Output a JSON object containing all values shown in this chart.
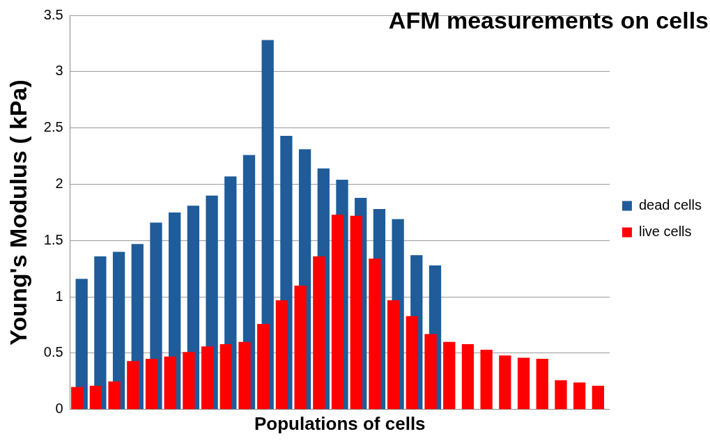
{
  "chart_data": {
    "type": "bar",
    "title": "AFM measurements on cells",
    "xlabel": "Populations of cells",
    "ylabel": "Young's Modulus ( kPa)",
    "categories": [
      null,
      null,
      null,
      null,
      null,
      null,
      null,
      null,
      null,
      null,
      null,
      null,
      null,
      null,
      null,
      null,
      null,
      null,
      null,
      null,
      null,
      null,
      null,
      null,
      null,
      null,
      null,
      null,
      null
    ],
    "series": [
      {
        "name": "dead cells",
        "color": "#1f5c99",
        "values": [
          1.16,
          1.36,
          1.4,
          1.47,
          1.66,
          1.75,
          1.81,
          1.9,
          2.07,
          2.26,
          3.28,
          2.43,
          2.31,
          2.14,
          2.04,
          1.88,
          1.78,
          1.69,
          1.37,
          1.28,
          null,
          null,
          null,
          null,
          null,
          null,
          null,
          null,
          null
        ]
      },
      {
        "name": "live cells",
        "color": "#ff0000",
        "values": [
          0.2,
          0.21,
          0.25,
          0.43,
          0.45,
          0.47,
          0.51,
          0.56,
          0.58,
          0.6,
          0.76,
          0.97,
          1.1,
          1.36,
          1.73,
          1.72,
          1.34,
          0.97,
          0.83,
          0.67,
          0.6,
          0.58,
          0.53,
          0.48,
          0.46,
          0.45,
          0.26,
          0.24,
          0.21
        ]
      }
    ],
    "ylim": [
      0,
      3.5
    ],
    "yticks": [
      0,
      0.5,
      1,
      1.5,
      2,
      2.5,
      3,
      3.5
    ],
    "grid": "y",
    "legend": "right"
  }
}
